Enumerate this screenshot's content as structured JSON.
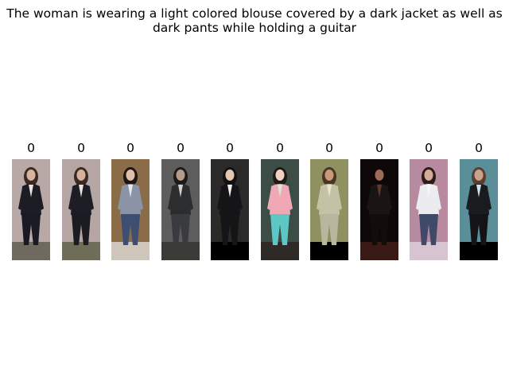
{
  "title": "The woman is wearing a light colored blouse covered by a dark jacket as well as dark pants while holding a guitar",
  "results": [
    {
      "score": "0",
      "desc": "woman in black blazer and skirt on phone, beige background",
      "colors": {
        "bg": "#b8a8a6",
        "floor": "#6f6a60",
        "top": "#1c1c24",
        "bottom": "#1a1a22",
        "accent": "#e9e4e0",
        "skin": "#d8b39e",
        "hair": "#3b2a22"
      }
    },
    {
      "score": "0",
      "desc": "woman in black blazer and skirt on phone, beige background",
      "colors": {
        "bg": "#b5a6a3",
        "floor": "#6e6e58",
        "top": "#1d1d25",
        "bottom": "#1b1b22",
        "accent": "#e8e3df",
        "skin": "#d6b19c",
        "hair": "#3a2a22"
      }
    },
    {
      "score": "0",
      "desc": "woman in grey cardigan and jeans walking",
      "colors": {
        "bg": "#8a6c48",
        "floor": "#cfc6bb",
        "top": "#8b93a6",
        "bottom": "#3f4f74",
        "accent": "#e7e9ef",
        "skin": "#e0bfa8",
        "hair": "#1e1612"
      }
    },
    {
      "score": "0",
      "desc": "person in dark coat indoors",
      "colors": {
        "bg": "#5d5d5d",
        "floor": "#3b3b38",
        "top": "#2b2d2f",
        "bottom": "#3a3b3e",
        "accent": "#cfd2d3",
        "skin": "#b59b89",
        "hair": "#1a1a1a"
      }
    },
    {
      "score": "0",
      "desc": "woman in black outfit with necklace",
      "colors": {
        "bg": "#2c2a28",
        "floor": "#000000",
        "top": "#151517",
        "bottom": "#151517",
        "accent": "#efefef",
        "skin": "#e6c8b2",
        "hair": "#111111"
      }
    },
    {
      "score": "0",
      "desc": "costumed performer in colorful outfit",
      "colors": {
        "bg": "#3b4d45",
        "floor": "#2e2a27",
        "top": "#f0a8b6",
        "bottom": "#5cc7c4",
        "accent": "#d8e7d6",
        "skin": "#f1d2c2",
        "hair": "#1f1a18"
      }
    },
    {
      "score": "0",
      "desc": "woman dancing outdoors in light clothes",
      "colors": {
        "bg": "#8f9160",
        "floor": "#000000",
        "top": "#c4c2a6",
        "bottom": "#b7b69f",
        "accent": "#e8e4cc",
        "skin": "#c99a7a",
        "hair": "#4a3425"
      }
    },
    {
      "score": "0",
      "desc": "woman in dark dress on stage",
      "colors": {
        "bg": "#0e0908",
        "floor": "#3a1a14",
        "top": "#1a1414",
        "bottom": "#120c0b",
        "accent": "#5a3c2f",
        "skin": "#9d6a56",
        "hair": "#0d0807"
      }
    },
    {
      "score": "0",
      "desc": "woman in white shirt and jeans on pink stage",
      "colors": {
        "bg": "#b88aa0",
        "floor": "#d6c5d0",
        "top": "#ecebef",
        "bottom": "#3f4a68",
        "accent": "#f5f3f6",
        "skin": "#d5aa96",
        "hair": "#2a1d19"
      }
    },
    {
      "score": "0",
      "desc": "woman in black outfit on teal set",
      "colors": {
        "bg": "#5a8e98",
        "floor": "#000000",
        "top": "#1a1b1f",
        "bottom": "#141417",
        "accent": "#cfe4e8",
        "skin": "#c9a28e",
        "hair": "#5a3f30"
      }
    }
  ]
}
